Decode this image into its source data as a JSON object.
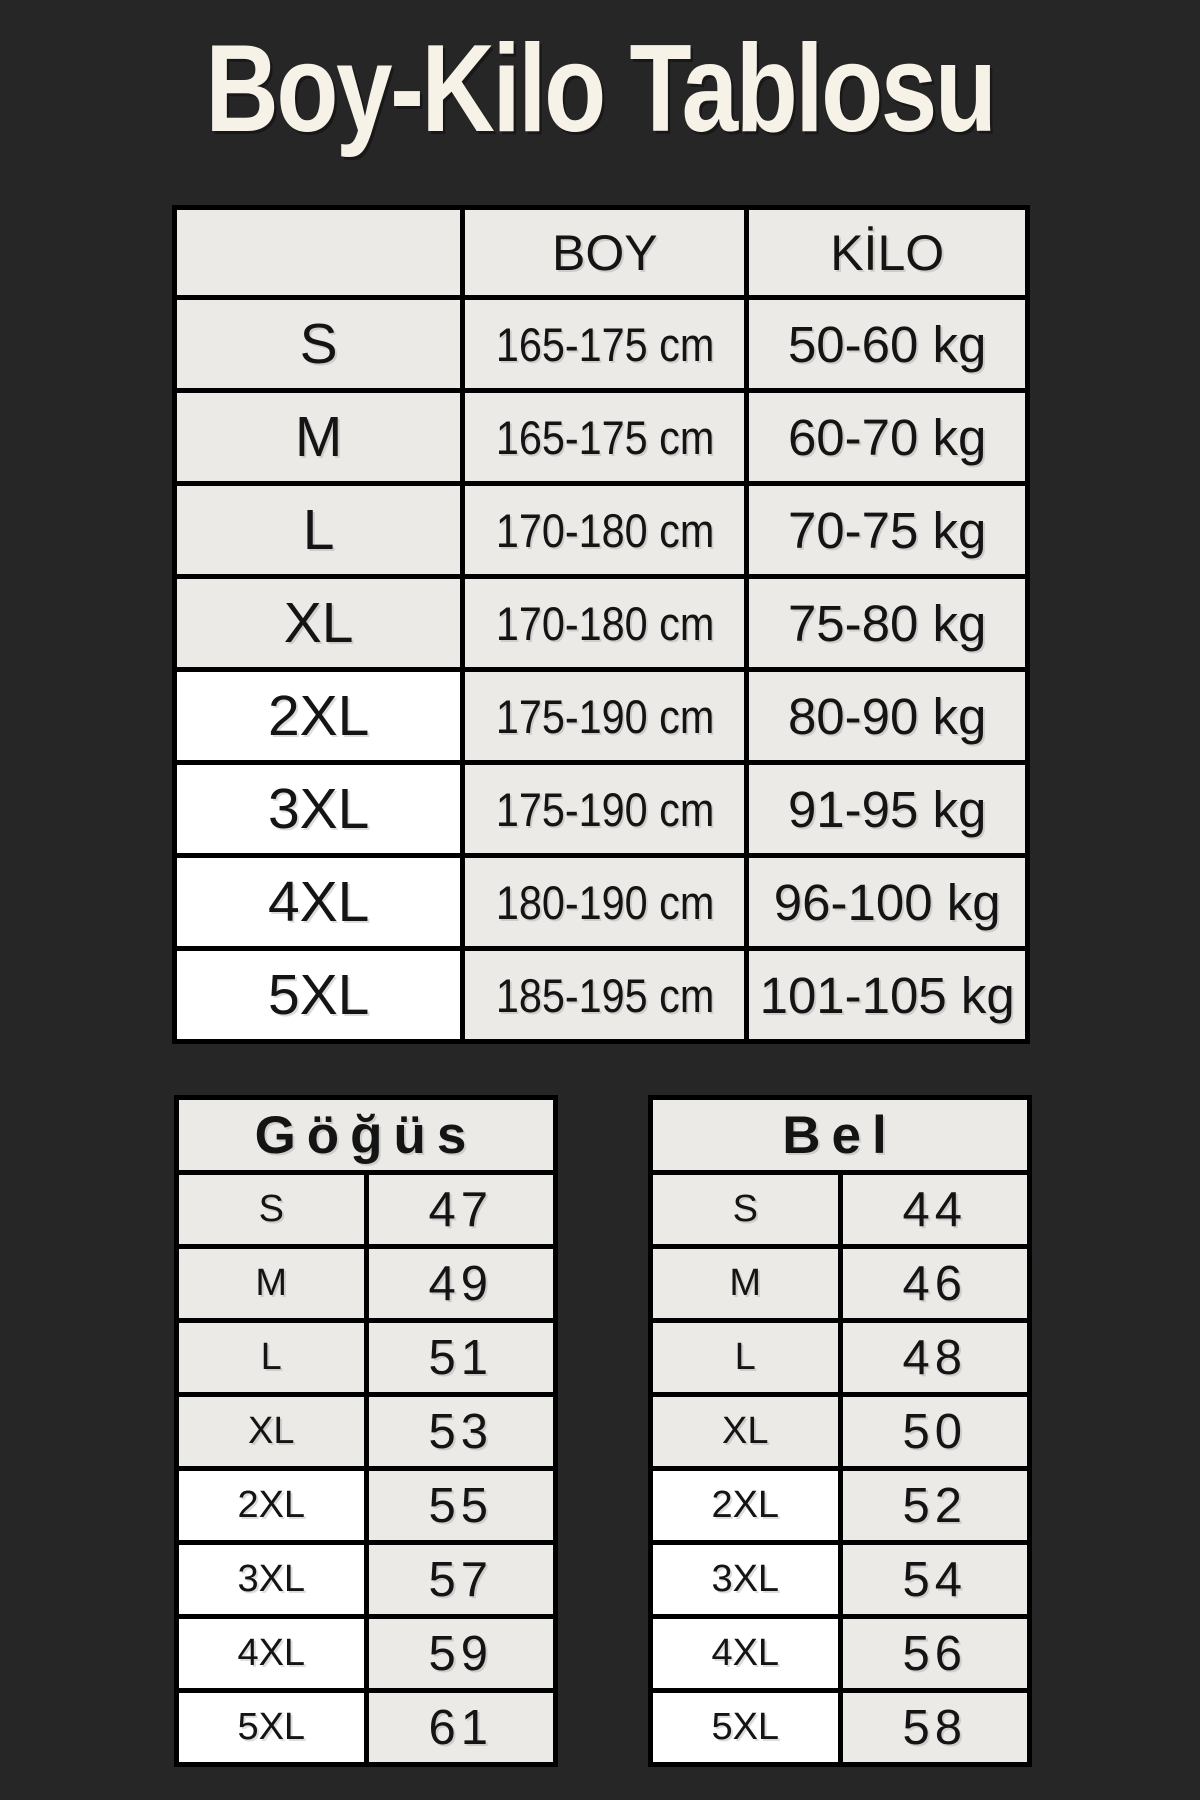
{
  "title": "Boy-Kilo Tablosu",
  "colors": {
    "background": "#262626",
    "cell_gray": "#ebeae7",
    "cell_highlight_white": "#ffffff",
    "border_black": "#000000",
    "title_text": "#f7f2e7",
    "cell_text": "#141414"
  },
  "highlighted_sizes": [
    "2XL",
    "3XL",
    "4XL",
    "5XL"
  ],
  "chart_data": [
    {
      "type": "table",
      "name": "boy-kilo-table",
      "columns": [
        "",
        "BOY",
        "KİLO"
      ],
      "rows": [
        [
          "S",
          "165-175 cm",
          "50-60 kg"
        ],
        [
          "M",
          "165-175 cm",
          "60-70 kg"
        ],
        [
          "L",
          "170-180 cm",
          "70-75 kg"
        ],
        [
          "XL",
          "170-180 cm",
          "75-80 kg"
        ],
        [
          "2XL",
          "175-190 cm",
          "80-90 kg"
        ],
        [
          "3XL",
          "175-190 cm",
          "91-95 kg"
        ],
        [
          "4XL",
          "180-190 cm",
          "96-100 kg"
        ],
        [
          "5XL",
          "185-195 cm",
          "101-105 kg"
        ]
      ]
    },
    {
      "type": "table",
      "name": "chest-table",
      "title": "Göğüs",
      "rows": [
        [
          "S",
          "47"
        ],
        [
          "M",
          "49"
        ],
        [
          "L",
          "51"
        ],
        [
          "XL",
          "53"
        ],
        [
          "2XL",
          "55"
        ],
        [
          "3XL",
          "57"
        ],
        [
          "4XL",
          "59"
        ],
        [
          "5XL",
          "61"
        ]
      ]
    },
    {
      "type": "table",
      "name": "waist-table",
      "title": "Bel",
      "rows": [
        [
          "S",
          "44"
        ],
        [
          "M",
          "46"
        ],
        [
          "L",
          "48"
        ],
        [
          "XL",
          "50"
        ],
        [
          "2XL",
          "52"
        ],
        [
          "3XL",
          "54"
        ],
        [
          "4XL",
          "56"
        ],
        [
          "5XL",
          "58"
        ]
      ]
    }
  ]
}
